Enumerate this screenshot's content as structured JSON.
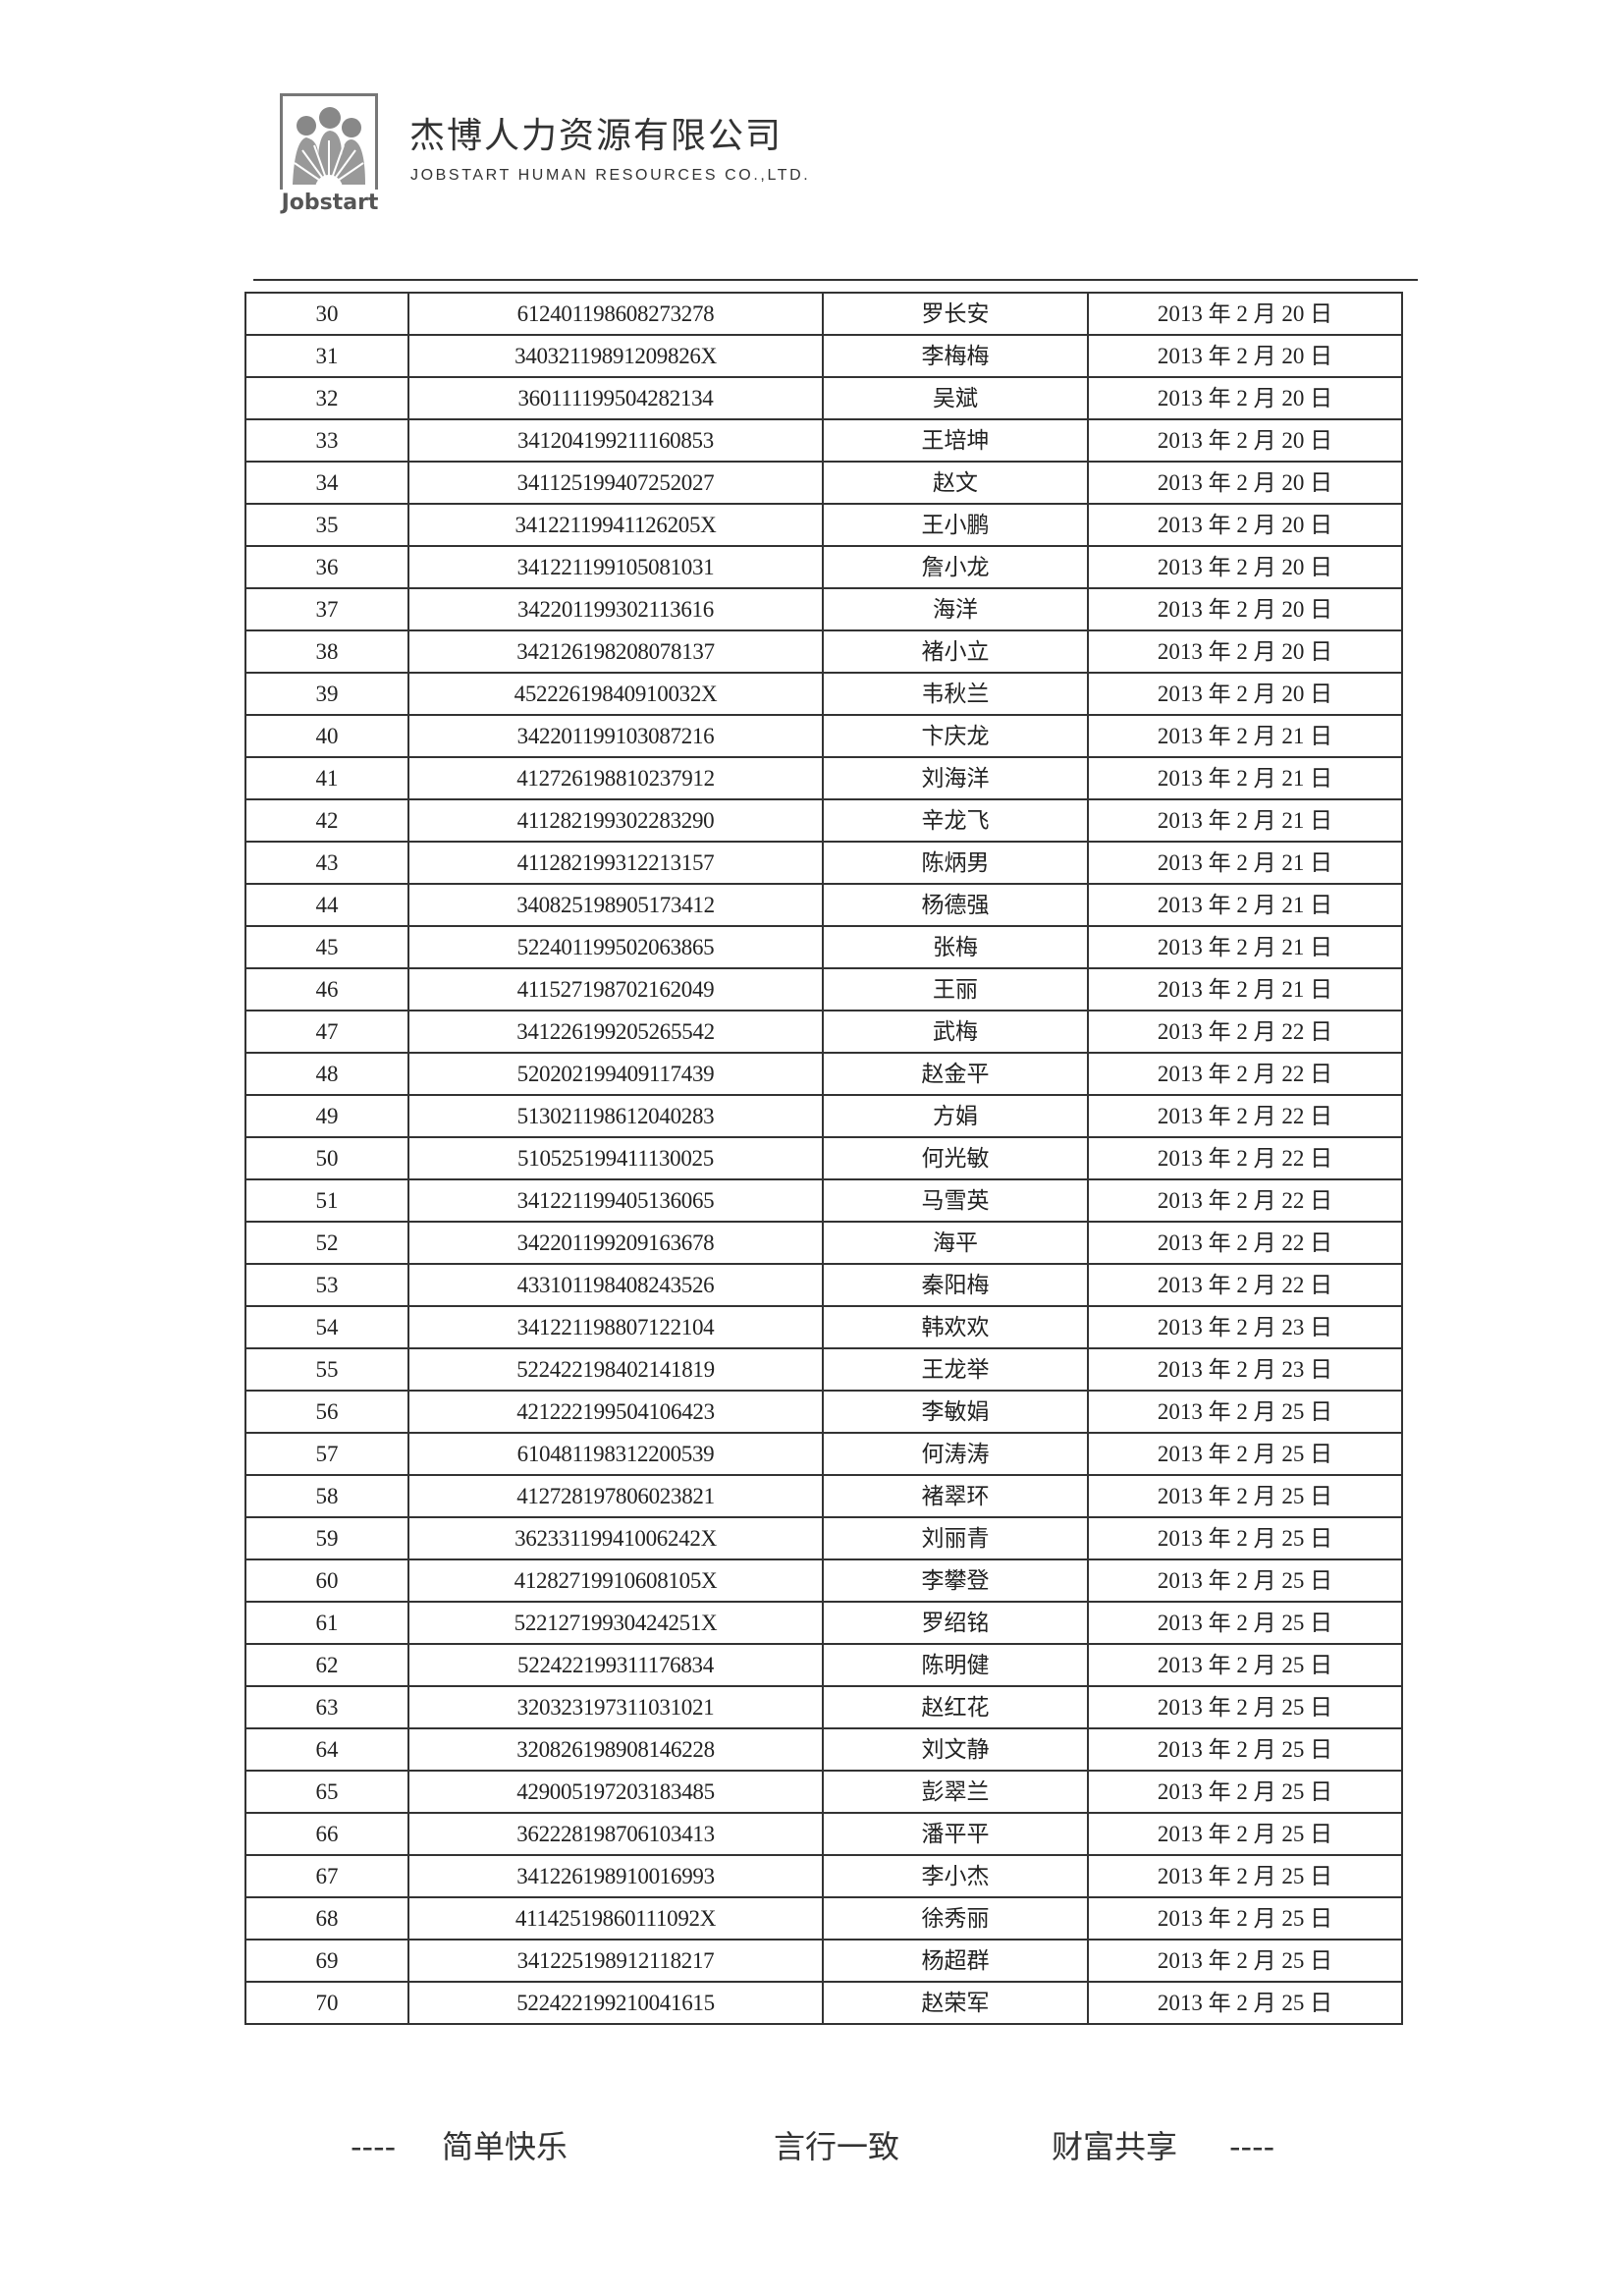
{
  "header": {
    "logo_text": "Jobstart",
    "company_cn": "杰博人力资源有限公司",
    "company_en": "JOBSTART HUMAN RESOURCES CO.,LTD."
  },
  "rows": [
    [
      "30",
      "612401198608273278",
      "罗长安",
      "2013 年 2 月 20 日"
    ],
    [
      "31",
      "34032119891209826X",
      "李梅梅",
      "2013 年 2 月 20 日"
    ],
    [
      "32",
      "360111199504282134",
      "吴斌",
      "2013 年 2 月 20 日"
    ],
    [
      "33",
      "341204199211160853",
      "王培坤",
      "2013 年 2 月 20 日"
    ],
    [
      "34",
      "341125199407252027",
      "赵文",
      "2013 年 2 月 20 日"
    ],
    [
      "35",
      "34122119941126205X",
      "王小鹏",
      "2013 年 2 月 20 日"
    ],
    [
      "36",
      "341221199105081031",
      "詹小龙",
      "2013 年 2 月 20 日"
    ],
    [
      "37",
      "342201199302113616",
      "海洋",
      "2013 年 2 月 20 日"
    ],
    [
      "38",
      "342126198208078137",
      "褚小立",
      "2013 年 2 月 20 日"
    ],
    [
      "39",
      "45222619840910032X",
      "韦秋兰",
      "2013 年 2 月 20 日"
    ],
    [
      "40",
      "342201199103087216",
      "卞庆龙",
      "2013 年 2 月 21 日"
    ],
    [
      "41",
      "412726198810237912",
      "刘海洋",
      "2013 年 2 月 21 日"
    ],
    [
      "42",
      "411282199302283290",
      "辛龙飞",
      "2013 年 2 月 21 日"
    ],
    [
      "43",
      "411282199312213157",
      "陈炳男",
      "2013 年 2 月 21 日"
    ],
    [
      "44",
      "340825198905173412",
      "杨德强",
      "2013 年 2 月 21 日"
    ],
    [
      "45",
      "522401199502063865",
      "张梅",
      "2013 年 2 月 21 日"
    ],
    [
      "46",
      "411527198702162049",
      "王丽",
      "2013 年 2 月 21 日"
    ],
    [
      "47",
      "341226199205265542",
      "武梅",
      "2013 年 2 月 22 日"
    ],
    [
      "48",
      "520202199409117439",
      "赵金平",
      "2013 年 2 月 22 日"
    ],
    [
      "49",
      "513021198612040283",
      "方娟",
      "2013 年 2 月 22 日"
    ],
    [
      "50",
      "510525199411130025",
      "何光敏",
      "2013 年 2 月 22 日"
    ],
    [
      "51",
      "341221199405136065",
      "马雪英",
      "2013 年 2 月 22 日"
    ],
    [
      "52",
      "342201199209163678",
      "海平",
      "2013 年 2 月 22 日"
    ],
    [
      "53",
      "433101198408243526",
      "秦阳梅",
      "2013 年 2 月 22 日"
    ],
    [
      "54",
      "341221198807122104",
      "韩欢欢",
      "2013 年 2 月 23 日"
    ],
    [
      "55",
      "522422198402141819",
      "王龙举",
      "2013 年 2 月 23 日"
    ],
    [
      "56",
      "421222199504106423",
      "李敏娟",
      "2013 年 2 月 25 日"
    ],
    [
      "57",
      "610481198312200539",
      "何涛涛",
      "2013 年 2 月 25 日"
    ],
    [
      "58",
      "412728197806023821",
      "褚翠环",
      "2013 年 2 月 25 日"
    ],
    [
      "59",
      "36233119941006242X",
      "刘丽青",
      "2013 年 2 月 25 日"
    ],
    [
      "60",
      "41282719910608105X",
      "李攀登",
      "2013 年 2 月 25 日"
    ],
    [
      "61",
      "52212719930424251X",
      "罗绍铭",
      "2013 年 2 月 25 日"
    ],
    [
      "62",
      "522422199311176834",
      "陈明健",
      "2013 年 2 月 25 日"
    ],
    [
      "63",
      "320323197311031021",
      "赵红花",
      "2013 年 2 月 25 日"
    ],
    [
      "64",
      "320826198908146228",
      "刘文静",
      "2013 年 2 月 25 日"
    ],
    [
      "65",
      "429005197203183485",
      "彭翠兰",
      "2013 年 2 月 25 日"
    ],
    [
      "66",
      "362228198706103413",
      "潘平平",
      "2013 年 2 月 25 日"
    ],
    [
      "67",
      "341226198910016993",
      "李小杰",
      "2013 年 2 月 25 日"
    ],
    [
      "68",
      "41142519860111092X",
      "徐秀丽",
      "2013 年 2 月 25 日"
    ],
    [
      "69",
      "341225198912118217",
      "杨超群",
      "2013 年 2 月 25 日"
    ],
    [
      "70",
      "522422199210041615",
      "赵荣军",
      "2013 年 2 月 25 日"
    ]
  ],
  "footer": {
    "dash_left": "----",
    "slogan_1": "简单快乐",
    "slogan_2": "言行一致",
    "slogan_3": "财富共享",
    "dash_right": "----"
  }
}
